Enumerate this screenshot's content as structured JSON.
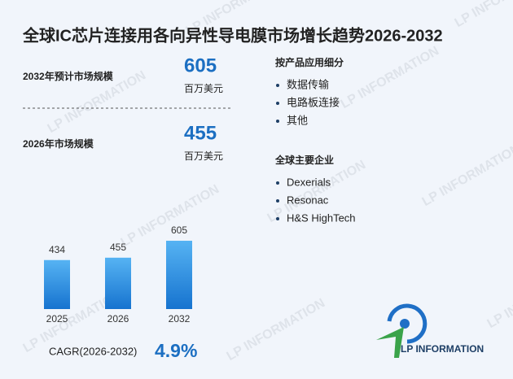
{
  "title": "全球IC芯片连接用各向异性导电膜市场增长趋势2026-2032",
  "stats": [
    {
      "label": "2032年预计市场规模",
      "value": "605",
      "unit": "百万美元"
    },
    {
      "label": "2026年市场规模",
      "value": "455",
      "unit": "百万美元"
    }
  ],
  "segments": {
    "title": "按产品应用细分",
    "items": [
      "数据传输",
      "电路板连接",
      "其他"
    ]
  },
  "companies": {
    "title": "全球主要企业",
    "items": [
      "Dexerials",
      "Resonac",
      "H&S HighTech"
    ]
  },
  "chart_data": {
    "type": "bar",
    "categories": [
      "2025",
      "2026",
      "2032"
    ],
    "values": [
      434,
      455,
      605
    ],
    "color": "#2b8ae0"
  },
  "cagr": {
    "label": "CAGR(2026-2032)",
    "value": "4.9%"
  },
  "logo": "LP INFORMATION",
  "watermark": "LP INFORMATION"
}
